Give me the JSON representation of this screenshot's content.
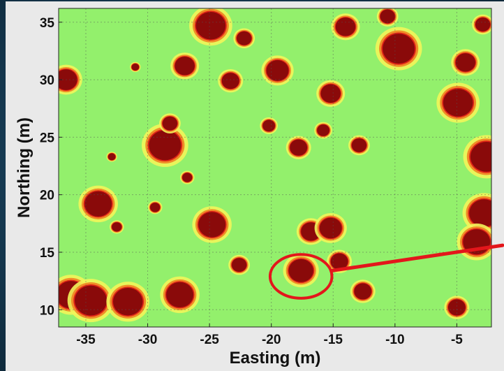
{
  "chart_data": {
    "type": "heatmap",
    "xlabel": "Easting (m)",
    "ylabel": "Northing (m)",
    "xlim": [
      -37.2,
      -2.2
    ],
    "ylim": [
      8.5,
      36.2
    ],
    "xticks": [
      -35,
      -30,
      -25,
      -20,
      -15,
      -10,
      -5
    ],
    "yticks": [
      10,
      15,
      20,
      25,
      30,
      35
    ],
    "xtick_labels": [
      "-35",
      "-30",
      "-25",
      "-20",
      "-15",
      "-10",
      "-5"
    ],
    "ytick_labels": [
      "10",
      "15",
      "20",
      "25",
      "30",
      "35"
    ],
    "grid": true,
    "colors": {
      "background": "#93f06c",
      "low": "#f2f55a",
      "mid": "#f08c28",
      "high": "#e02418",
      "peak": "#8a0a0a",
      "annotation": "#e3161b"
    },
    "blobs": [
      {
        "x": -24.9,
        "y": 34.7,
        "r": 1.2
      },
      {
        "x": -22.2,
        "y": 33.6,
        "r": 0.6
      },
      {
        "x": -27.0,
        "y": 31.2,
        "r": 0.8
      },
      {
        "x": -23.3,
        "y": 29.9,
        "r": 0.7
      },
      {
        "x": -19.5,
        "y": 30.8,
        "r": 0.9
      },
      {
        "x": -15.2,
        "y": 28.8,
        "r": 0.8
      },
      {
        "x": -14.0,
        "y": 34.6,
        "r": 0.8
      },
      {
        "x": -10.6,
        "y": 35.5,
        "r": 0.6
      },
      {
        "x": -9.7,
        "y": 32.7,
        "r": 1.3
      },
      {
        "x": -4.3,
        "y": 31.5,
        "r": 0.8
      },
      {
        "x": -2.9,
        "y": 34.8,
        "r": 0.6
      },
      {
        "x": -4.9,
        "y": 28.0,
        "r": 1.2
      },
      {
        "x": -36.6,
        "y": 30.0,
        "r": 0.9
      },
      {
        "x": -28.6,
        "y": 24.3,
        "r": 1.3
      },
      {
        "x": -28.2,
        "y": 26.2,
        "r": 0.6
      },
      {
        "x": -20.2,
        "y": 26.0,
        "r": 0.5
      },
      {
        "x": -17.8,
        "y": 24.1,
        "r": 0.7
      },
      {
        "x": -15.8,
        "y": 25.6,
        "r": 0.5
      },
      {
        "x": -12.9,
        "y": 24.3,
        "r": 0.6
      },
      {
        "x": -2.6,
        "y": 23.3,
        "r": 1.3
      },
      {
        "x": -34.0,
        "y": 19.2,
        "r": 1.1
      },
      {
        "x": -26.8,
        "y": 21.5,
        "r": 0.4
      },
      {
        "x": -2.8,
        "y": 18.4,
        "r": 1.2
      },
      {
        "x": -24.8,
        "y": 17.4,
        "r": 1.1
      },
      {
        "x": -16.8,
        "y": 16.8,
        "r": 0.8
      },
      {
        "x": -15.2,
        "y": 17.1,
        "r": 0.9
      },
      {
        "x": -3.4,
        "y": 15.9,
        "r": 1.1
      },
      {
        "x": -14.5,
        "y": 14.2,
        "r": 0.7
      },
      {
        "x": -17.6,
        "y": 13.4,
        "r": 1.0
      },
      {
        "x": -22.6,
        "y": 13.9,
        "r": 0.6
      },
      {
        "x": -36.2,
        "y": 11.3,
        "r": 1.2
      },
      {
        "x": -34.6,
        "y": 10.8,
        "r": 1.3
      },
      {
        "x": -31.6,
        "y": 10.7,
        "r": 1.2
      },
      {
        "x": -27.4,
        "y": 11.3,
        "r": 1.1
      },
      {
        "x": -12.6,
        "y": 11.6,
        "r": 0.7
      },
      {
        "x": -5.0,
        "y": 10.2,
        "r": 0.7
      },
      {
        "x": -29.4,
        "y": 18.9,
        "r": 0.4
      },
      {
        "x": -32.5,
        "y": 17.2,
        "r": 0.4
      },
      {
        "x": -32.9,
        "y": 23.3,
        "r": 0.3
      },
      {
        "x": -31.0,
        "y": 31.1,
        "r": 0.3
      }
    ],
    "annotation": {
      "circle": {
        "x": -17.6,
        "y": 12.9,
        "rx": 2.5,
        "ry": 1.9
      },
      "arrow_to": {
        "x": -2.2,
        "y": 15.6
      }
    }
  }
}
